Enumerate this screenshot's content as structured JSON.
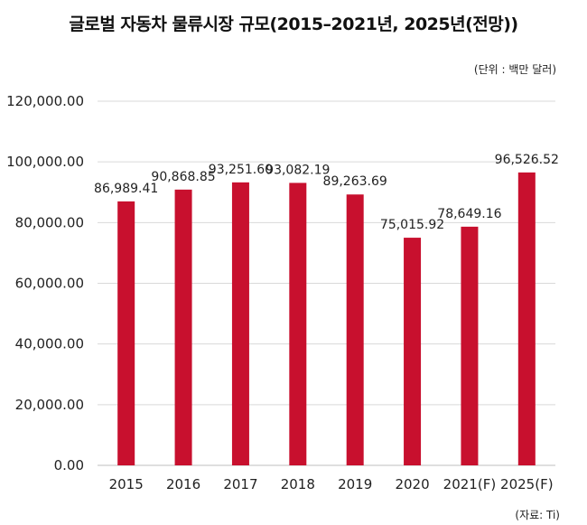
{
  "chart_data": {
    "type": "bar",
    "title": "글로벌 자동차 물류시장 규모(2015–2021년, 2025년(전망))",
    "unit_note": "(단위 : 백만 달러)",
    "source": "(자료: Ti)",
    "categories": [
      "2015",
      "2016",
      "2017",
      "2018",
      "2019",
      "2020",
      "2021(F)",
      "2025(F)"
    ],
    "values": [
      86989.41,
      90868.85,
      93251.6,
      93082.19,
      89263.69,
      75015.92,
      78649.16,
      96526.52
    ],
    "value_labels": [
      "86,989.41",
      "90,868.85",
      "93,251.60",
      "93,082.19",
      "89,263.69",
      "75,015.92",
      "78,649.16",
      "96,526.52"
    ],
    "yticks": [
      0,
      20000,
      40000,
      60000,
      80000,
      100000,
      120000
    ],
    "ytick_labels": [
      "0.00",
      "20,000.00",
      "40,000.00",
      "60,000.00",
      "80,000.00",
      "100,000.00",
      "120,000.00"
    ],
    "ylim": [
      0,
      120000
    ],
    "grid": true,
    "legend": "none",
    "colors": {
      "bar": "#c8102e",
      "grid": "#d9d9d9",
      "axis": "#bfbfbf"
    }
  }
}
